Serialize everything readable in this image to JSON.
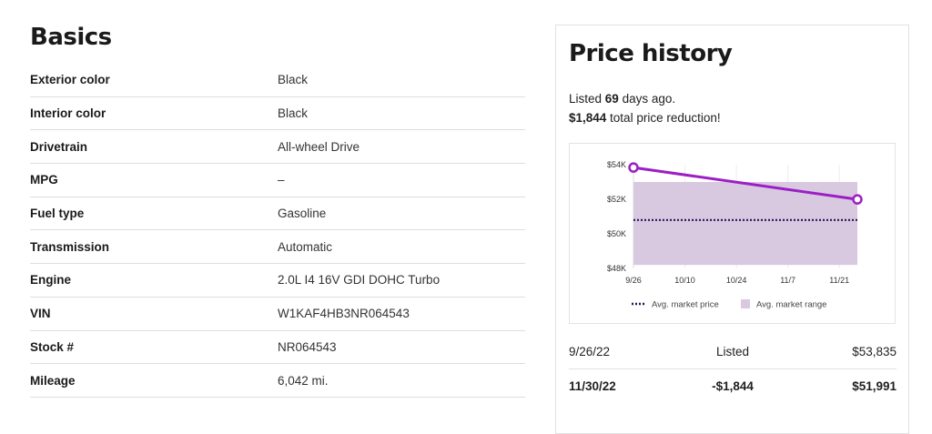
{
  "basics": {
    "title": "Basics",
    "rows": [
      {
        "label": "Exterior color",
        "value": "Black"
      },
      {
        "label": "Interior color",
        "value": "Black"
      },
      {
        "label": "Drivetrain",
        "value": "All-wheel Drive"
      },
      {
        "label": "MPG",
        "value": "–"
      },
      {
        "label": "Fuel type",
        "value": "Gasoline"
      },
      {
        "label": "Transmission",
        "value": "Automatic"
      },
      {
        "label": "Engine",
        "value": "2.0L I4 16V GDI DOHC Turbo"
      },
      {
        "label": "VIN",
        "value": "W1KAF4HB3NR064543"
      },
      {
        "label": "Stock #",
        "value": "NR064543"
      },
      {
        "label": "Mileage",
        "value": "6,042 mi."
      }
    ]
  },
  "price_history": {
    "title": "Price history",
    "listed_prefix": "Listed ",
    "listed_days": "69",
    "listed_suffix": " days ago.",
    "reduction_amount": "$1,844",
    "reduction_suffix": " total price reduction!",
    "history": [
      {
        "date": "9/26/22",
        "event": "Listed",
        "price": "$53,835"
      },
      {
        "date": "11/30/22",
        "event": "-$1,844",
        "price": "$51,991"
      }
    ]
  },
  "chart_data": {
    "type": "line",
    "x_ticks": [
      "9/26",
      "10/10",
      "10/24",
      "11/7",
      "11/21"
    ],
    "y_ticks": [
      "$54K",
      "$52K",
      "$50K",
      "$48K"
    ],
    "ylim": [
      48000,
      54000
    ],
    "x_range": [
      "2022-09-26",
      "2022-11-30"
    ],
    "series": [
      {
        "points": [
          {
            "x": "2022-09-26",
            "y": 53835
          },
          {
            "x": "2022-11-30",
            "y": 51991
          }
        ]
      }
    ],
    "market_price": 50800,
    "market_range": [
      48200,
      53000
    ],
    "legend": {
      "price_label": "Avg. market price",
      "range_label": "Avg. market range",
      "placement": "bottom"
    },
    "colors": {
      "line": "#9b1fc4",
      "range": "#d8c9e0",
      "market_line": "#2c1456"
    }
  }
}
